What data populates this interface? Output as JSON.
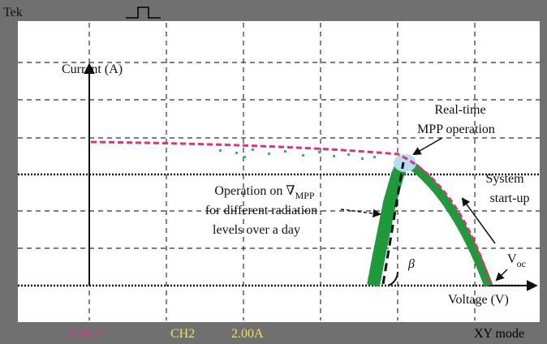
{
  "header": {
    "brand": "Tek"
  },
  "labels": {
    "current_axis": "Current (A)",
    "realtime": [
      "Real-time",
      "MPP operation"
    ],
    "startup": [
      "System",
      "start-up"
    ],
    "operation": {
      "prefix": "Operation on ∇",
      "subscript": "MPP",
      "lines": [
        "for different radiation",
        "levels over a day"
      ]
    },
    "beta": "β",
    "voc": {
      "main": "V",
      "subscript": "oc"
    },
    "voltage_axis": "Voltage (V)"
  },
  "footer": {
    "ch1": "1.00 V",
    "ch2": "CH2",
    "ch2_scale": "2.00A",
    "mode": "XY mode"
  }
}
